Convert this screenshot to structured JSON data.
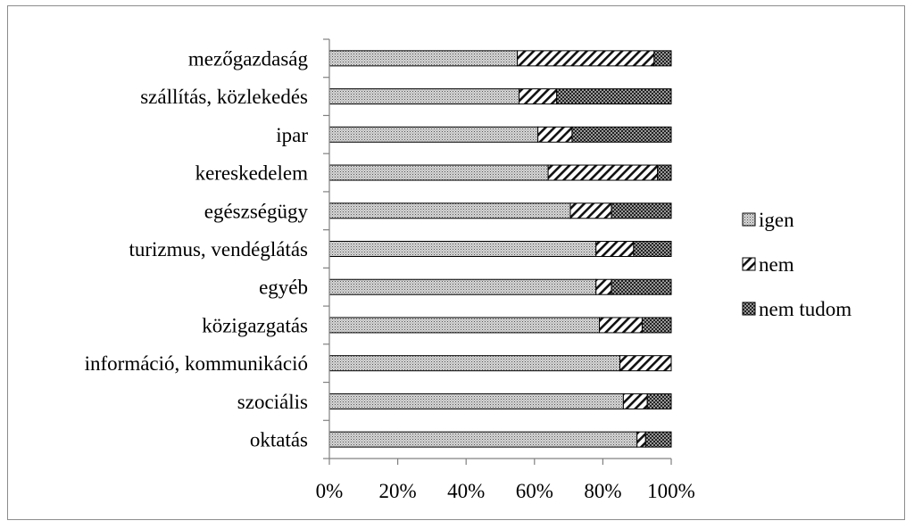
{
  "chart_data": {
    "type": "bar",
    "orientation": "horizontal",
    "stacked": "percent",
    "title": "",
    "xlabel": "",
    "ylabel": "",
    "categories": [
      "mezőgazdaság",
      "szállítás, közlekedés",
      "ipar",
      "kereskedelem",
      "egészségügy",
      "turizmus, vendéglátás",
      "egyéb",
      "közigazgatás",
      "információ, kommunikáció",
      "szociális",
      "oktatás"
    ],
    "series": [
      {
        "name": "igen",
        "pattern": "fine-dots",
        "color": "#c8c8c8",
        "values": [
          55,
          55.5,
          61,
          64,
          70.5,
          78,
          78,
          79,
          85,
          86,
          90
        ]
      },
      {
        "name": "nem",
        "pattern": "diagonal-hatch",
        "color": "#ffffff",
        "values": [
          40,
          11,
          10,
          32,
          12,
          11,
          4.5,
          12.5,
          15,
          7,
          2.5
        ]
      },
      {
        "name": "nem tudom",
        "pattern": "dark-check",
        "color": "#3a3a3a",
        "values": [
          5,
          33.5,
          29,
          4,
          17.5,
          11,
          17.5,
          8.5,
          0,
          7,
          7.5
        ]
      }
    ],
    "xlim": [
      0,
      100
    ],
    "xticks": [
      "0%",
      "20%",
      "40%",
      "60%",
      "80%",
      "100%"
    ],
    "grid": false,
    "legend": "right"
  }
}
